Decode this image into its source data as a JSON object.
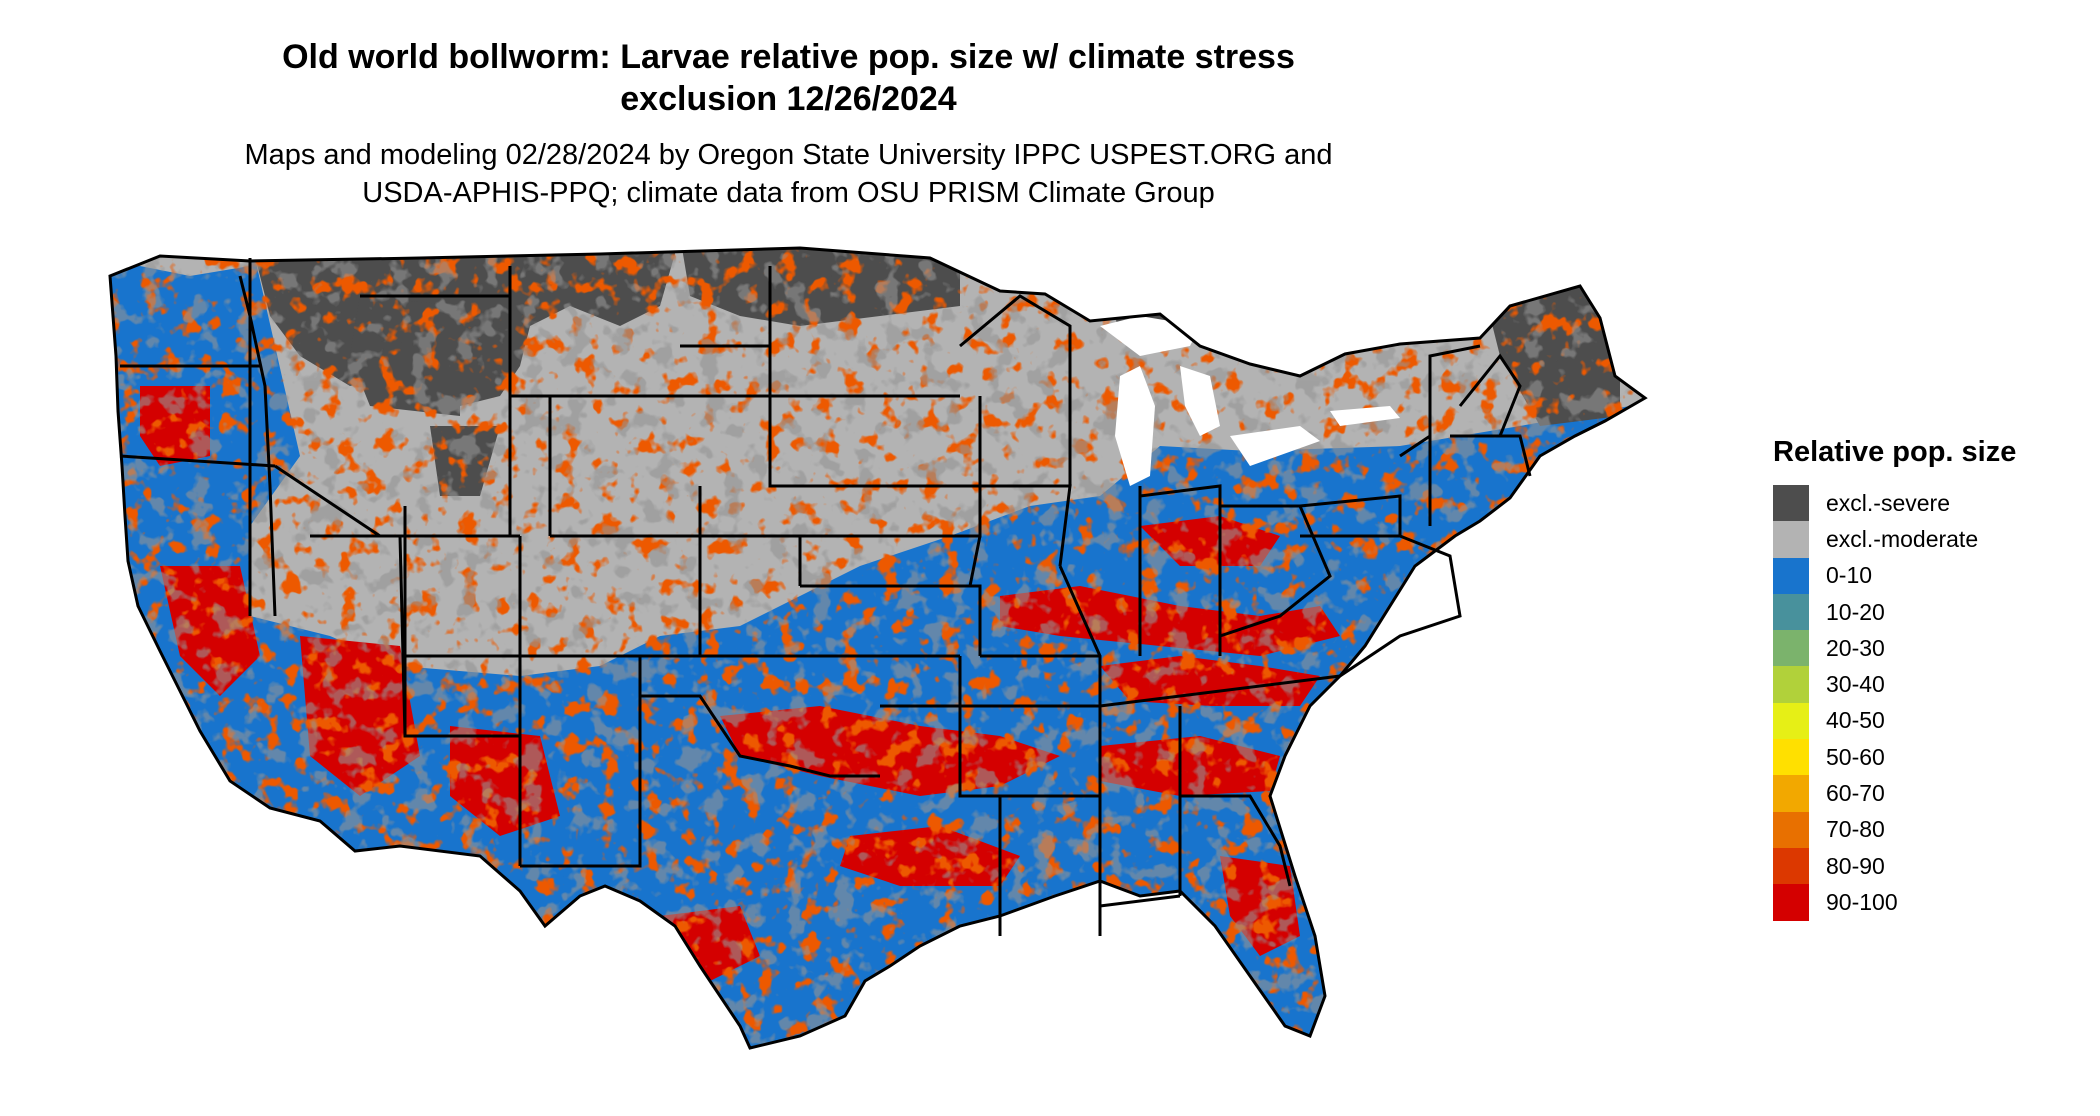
{
  "title_line1": "Old world bollworm: Larvae relative pop. size w/ climate stress",
  "title_line2": "exclusion 12/26/2024",
  "subtitle_line1": "Maps and modeling 02/28/2024 by Oregon State University IPPC USPEST.ORG and",
  "subtitle_line2": "USDA-APHIS-PPQ; climate data from OSU PRISM Climate Group",
  "legend": {
    "title": "Relative pop. size",
    "items": [
      {
        "label": "excl.-severe",
        "color": "#4d4d4d"
      },
      {
        "label": "excl.-moderate",
        "color": "#b3b3b3"
      },
      {
        "label": "0-10",
        "color": "#1874cd"
      },
      {
        "label": "10-20",
        "color": "#48919c"
      },
      {
        "label": "20-30",
        "color": "#7bb36c"
      },
      {
        "label": "30-40",
        "color": "#b1d13a"
      },
      {
        "label": "40-50",
        "color": "#e6ef16"
      },
      {
        "label": "50-60",
        "color": "#ffe000"
      },
      {
        "label": "60-70",
        "color": "#f2a800"
      },
      {
        "label": "70-80",
        "color": "#e87000"
      },
      {
        "label": "80-90",
        "color": "#dc3800"
      },
      {
        "label": "90-100",
        "color": "#d40000"
      }
    ]
  }
}
